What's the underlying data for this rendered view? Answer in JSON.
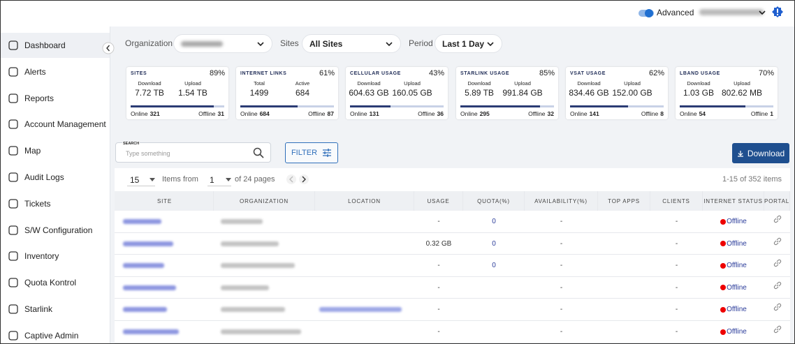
{
  "header": {
    "toggle_label": "Advanced"
  },
  "sidebar": {
    "items": [
      "Dashboard",
      "Alerts",
      "Reports",
      "Account Management",
      "Map",
      "Audit Logs",
      "Tickets",
      "S/W Configuration",
      "Inventory",
      "Quota Kontrol",
      "Starlink",
      "Captive Admin"
    ]
  },
  "filters": {
    "organization_label": "Organization",
    "sites_label": "Sites",
    "sites_value": "All Sites",
    "period_label": "Period",
    "period_value": "Last 1 Day"
  },
  "cards": [
    {
      "title": "SITES",
      "percent": {
        "value": 89,
        "label": "89%"
      },
      "metrics": [
        {
          "label": "Download",
          "value": "7.72 TB"
        },
        {
          "label": "Upload",
          "value": "1.54 TB"
        }
      ],
      "online_label": "Online",
      "online": 321,
      "offline_label": "Offline",
      "offline": 31
    },
    {
      "title": "INTERNET LINKS",
      "percent": {
        "value": 61,
        "label": "61%"
      },
      "metrics": [
        {
          "label": "Total",
          "value": "1499"
        },
        {
          "label": "Active",
          "value": "684"
        }
      ],
      "online_label": "Online",
      "online": 684,
      "offline_label": "Offline",
      "offline": 87
    },
    {
      "title": "CELLULAR USAGE",
      "percent": {
        "value": 43,
        "label": "43%"
      },
      "metrics": [
        {
          "label": "Download",
          "value": "604.63 GB"
        },
        {
          "label": "Upload",
          "value": "160.05 GB"
        }
      ],
      "online_label": "Online",
      "online": 131,
      "offline_label": "Offline",
      "offline": 36
    },
    {
      "title": "STARLINK USAGE",
      "percent": {
        "value": 85,
        "label": "85%"
      },
      "metrics": [
        {
          "label": "Download",
          "value": "5.89 TB"
        },
        {
          "label": "Upload",
          "value": "991.84 GB"
        }
      ],
      "online_label": "Online",
      "online": 295,
      "offline_label": "Offline",
      "offline": 32
    },
    {
      "title": "VSAT USAGE",
      "percent": {
        "value": 62,
        "label": "62%"
      },
      "metrics": [
        {
          "label": "Download",
          "value": "834.46 GB"
        },
        {
          "label": "Upload",
          "value": "152.00 GB"
        }
      ],
      "online_label": "Online",
      "online": 141,
      "offline_label": "Offline",
      "offline": 8
    },
    {
      "title": "LBAND USAGE",
      "percent": {
        "value": 70,
        "label": "70%"
      },
      "metrics": [
        {
          "label": "Download",
          "value": "1.03 GB"
        },
        {
          "label": "Upload",
          "value": "802.62 MB"
        }
      ],
      "online_label": "Online",
      "online": 54,
      "offline_label": "Offline",
      "offline": 1
    }
  ],
  "toolbar": {
    "search_label": "SEARCH",
    "search_placeholder": "Type something",
    "filter_button": "FILTER",
    "download_button": "Download"
  },
  "pagination": {
    "page_size": "15",
    "items_from": "Items from",
    "page": "1",
    "page_count_text": "of 24 pages",
    "range_text": "1-15 of 352 items"
  },
  "table": {
    "columns": [
      "SITE",
      "ORGANIZATION",
      "LOCATION",
      "USAGE",
      "QUOTA(%)",
      "AVAILABILITY(%)",
      "TOP APPS",
      "CLIENTS",
      "INTERNET STATUS",
      "PORTAL"
    ],
    "rows": [
      {
        "usage": "-",
        "quota": "0",
        "availability": "-",
        "clients": "-",
        "status": "Offline"
      },
      {
        "usage": "0.32 GB",
        "quota": "0",
        "availability": "-",
        "clients": "-",
        "status": "Offline"
      },
      {
        "usage": "-",
        "quota": "0",
        "availability": "-",
        "clients": "-",
        "status": "Offline"
      },
      {
        "usage": "-",
        "availability": "-",
        "clients": "-",
        "status": "Offline"
      },
      {
        "usage": "-",
        "availability": "-",
        "clients": "-",
        "status": "Offline"
      },
      {
        "usage": "-",
        "availability": "-",
        "clients": "-",
        "status": "Offline"
      }
    ]
  }
}
